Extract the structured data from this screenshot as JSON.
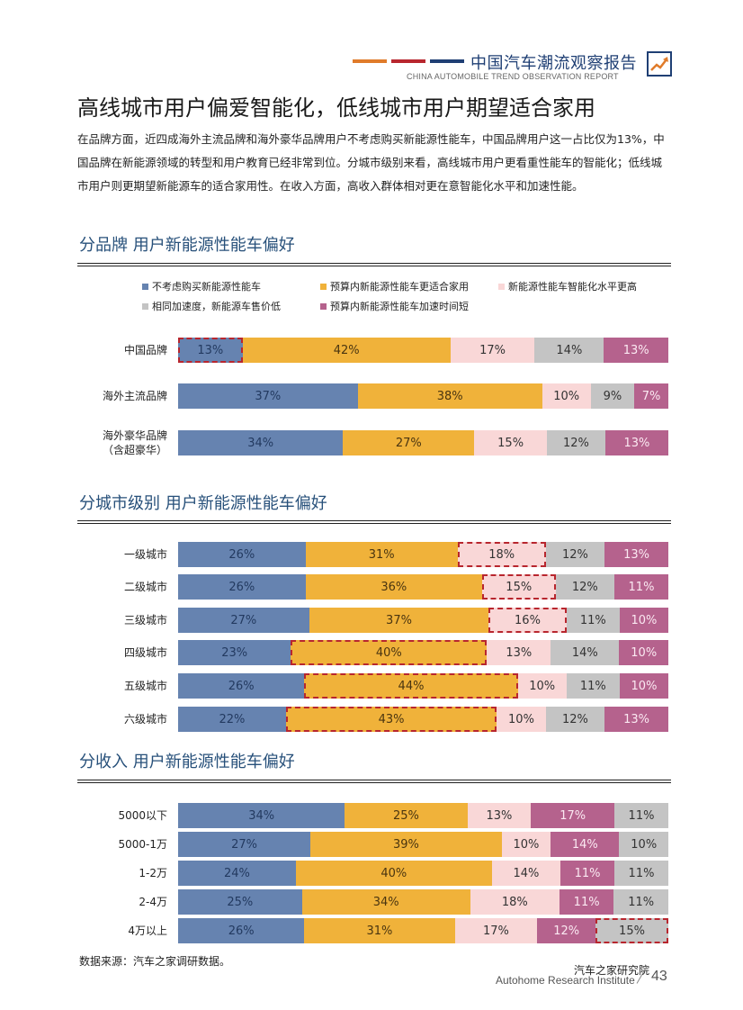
{
  "header": {
    "title": "中国汽车潮流观察报告",
    "subtitle": "CHINA AUTOMOBILE TREND OBSERVATION REPORT",
    "bar_colors": [
      "#e07b2a",
      "#b8262e",
      "#1f3f74"
    ],
    "icon": "trend-chart-icon"
  },
  "title": "高线城市用户偏爱智能化，低线城市用户期望适合家用",
  "intro": "在品牌方面，近四成海外主流品牌和海外豪华品牌用户不考虑购买新能源性能车，中国品牌用户这一占比仅为13%，中国品牌在新能源领域的转型和用户教育已经非常到位。分城市级别来看，高线城市用户更看重性能车的智能化；低线城市用户则更期望新能源车的适合家用性。在收入方面，高收入群体相对更在意智能化水平和加速性能。",
  "legend": [
    {
      "label": "不考虑购买新能源性能车",
      "color": "#6683b0"
    },
    {
      "label": "预算内新能源性能车更适合家用",
      "color": "#f0b23a"
    },
    {
      "label": "新能源性能车智能化水平更高",
      "color": "#f9d7d7"
    },
    {
      "label": "相同加速度，新能源车售价低",
      "color": "#c4c4c4"
    },
    {
      "label": "预算内新能源性能车加速时间短",
      "color": "#b5628d"
    }
  ],
  "chart_data": [
    {
      "type": "bar",
      "stacked": true,
      "orientation": "horizontal",
      "title": "分品牌  用户新能源性能车偏好",
      "unit": "%",
      "categories": [
        "中国品牌",
        "海外主流品牌",
        "海外豪华品牌\n（含超豪华）"
      ],
      "series": [
        {
          "name": "不考虑购买新能源性能车",
          "values": [
            13,
            37,
            34
          ]
        },
        {
          "name": "预算内新能源性能车更适合家用",
          "values": [
            42,
            38,
            27
          ]
        },
        {
          "name": "新能源性能车智能化水平更高",
          "values": [
            17,
            10,
            15
          ]
        },
        {
          "name": "相同加速度，新能源车售价低",
          "values": [
            14,
            9,
            12
          ]
        },
        {
          "name": "预算内新能源性能车加速时间短",
          "values": [
            13,
            7,
            13
          ]
        }
      ],
      "highlighted": [
        [
          0,
          0
        ]
      ]
    },
    {
      "type": "bar",
      "stacked": true,
      "orientation": "horizontal",
      "title": "分城市级别  用户新能源性能车偏好",
      "unit": "%",
      "categories": [
        "一级城市",
        "二级城市",
        "三级城市",
        "四级城市",
        "五级城市",
        "六级城市"
      ],
      "series": [
        {
          "name": "不考虑购买新能源性能车",
          "values": [
            26,
            26,
            27,
            23,
            26,
            22
          ]
        },
        {
          "name": "预算内新能源性能车更适合家用",
          "values": [
            31,
            36,
            37,
            40,
            44,
            43
          ]
        },
        {
          "name": "新能源性能车智能化水平更高",
          "values": [
            18,
            15,
            16,
            13,
            10,
            10
          ]
        },
        {
          "name": "相同加速度，新能源车售价低",
          "values": [
            12,
            12,
            11,
            14,
            11,
            12
          ]
        },
        {
          "name": "预算内新能源性能车加速时间短",
          "values": [
            13,
            11,
            10,
            10,
            10,
            13
          ]
        }
      ],
      "highlighted": [
        [
          0,
          2
        ],
        [
          1,
          2
        ],
        [
          2,
          2
        ],
        [
          3,
          1
        ],
        [
          4,
          1
        ],
        [
          5,
          1
        ]
      ]
    },
    {
      "type": "bar",
      "stacked": true,
      "orientation": "horizontal",
      "title": "分收入  用户新能源性能车偏好",
      "unit": "%",
      "categories": [
        "5000以下",
        "5000-1万",
        "1-2万",
        "2-4万",
        "4万以上"
      ],
      "segment_order": [
        0,
        1,
        2,
        4,
        3
      ],
      "series": [
        {
          "name": "不考虑购买新能源性能车",
          "values": [
            34,
            27,
            24,
            25,
            26
          ]
        },
        {
          "name": "预算内新能源性能车更适合家用",
          "values": [
            25,
            39,
            40,
            34,
            31
          ]
        },
        {
          "name": "新能源性能车智能化水平更高",
          "values": [
            13,
            10,
            14,
            18,
            17
          ]
        },
        {
          "name": "相同加速度，新能源车售价低",
          "values": [
            11,
            10,
            11,
            11,
            15
          ]
        },
        {
          "name": "预算内新能源性能车加速时间短",
          "values": [
            17,
            14,
            11,
            11,
            12
          ]
        }
      ],
      "highlighted": [
        [
          4,
          3
        ]
      ]
    }
  ],
  "source": "数据来源：汽车之家调研数据。",
  "footer": {
    "org_cn": "汽车之家研究院",
    "org_en": "Autohome Research Institute",
    "page": "43"
  }
}
